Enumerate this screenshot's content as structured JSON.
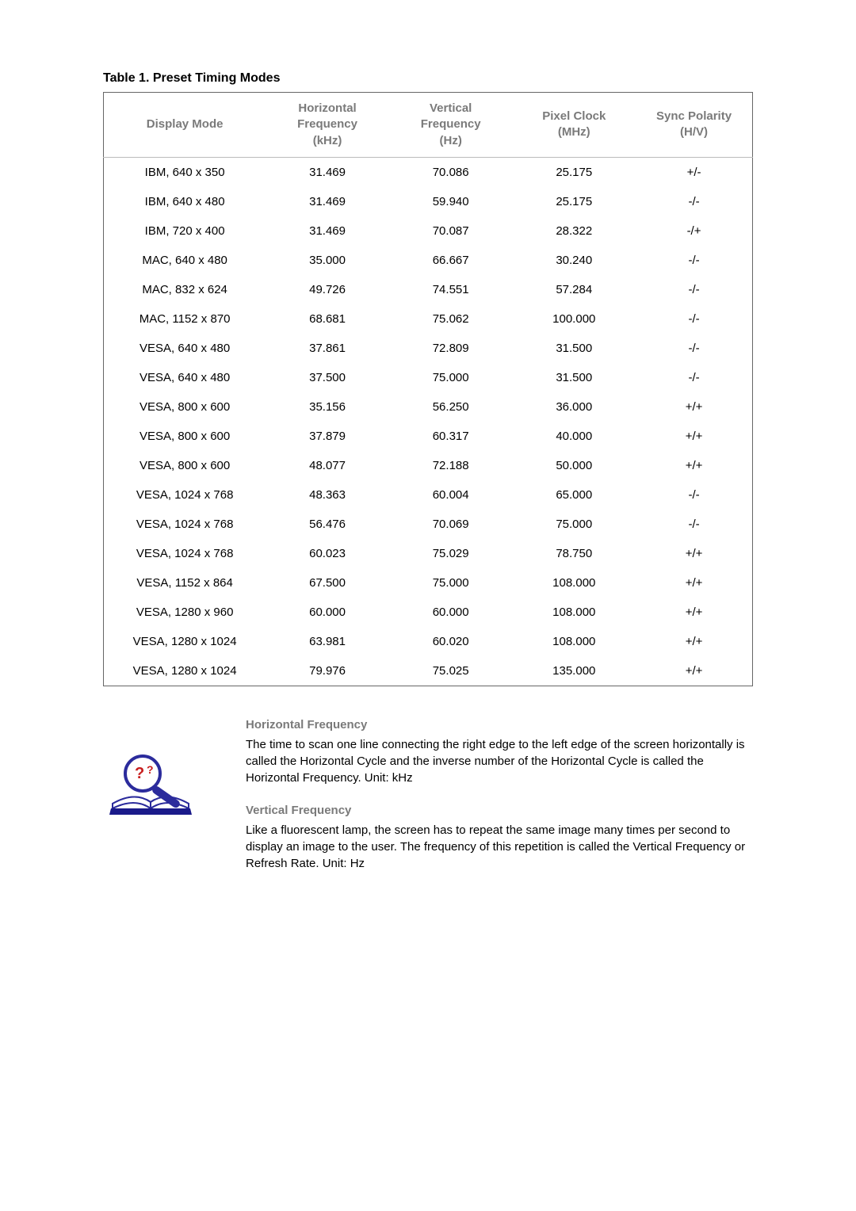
{
  "table": {
    "title": "Table 1. Preset Timing Modes",
    "columns": [
      "Display Mode",
      "Horizontal\nFrequency\n(kHz)",
      "Vertical\nFrequency\n(Hz)",
      "Pixel Clock\n(MHz)",
      "Sync Polarity\n(H/V)"
    ],
    "rows": [
      [
        "IBM, 640 x 350",
        "31.469",
        "70.086",
        "25.175",
        "+/-"
      ],
      [
        "IBM, 640 x 480",
        "31.469",
        "59.940",
        "25.175",
        "-/-"
      ],
      [
        "IBM, 720 x 400",
        "31.469",
        "70.087",
        "28.322",
        "-/+"
      ],
      [
        "MAC, 640 x 480",
        "35.000",
        "66.667",
        "30.240",
        "-/-"
      ],
      [
        "MAC, 832 x 624",
        "49.726",
        "74.551",
        "57.284",
        "-/-"
      ],
      [
        "MAC, 1152 x 870",
        "68.681",
        "75.062",
        "100.000",
        "-/-"
      ],
      [
        "VESA, 640 x 480",
        "37.861",
        "72.809",
        "31.500",
        "-/-"
      ],
      [
        "VESA, 640 x 480",
        "37.500",
        "75.000",
        "31.500",
        "-/-"
      ],
      [
        "VESA, 800 x 600",
        "35.156",
        "56.250",
        "36.000",
        "+/+"
      ],
      [
        "VESA, 800 x 600",
        "37.879",
        "60.317",
        "40.000",
        "+/+"
      ],
      [
        "VESA, 800 x 600",
        "48.077",
        "72.188",
        "50.000",
        "+/+"
      ],
      [
        "VESA, 1024 x 768",
        "48.363",
        "60.004",
        "65.000",
        "-/-"
      ],
      [
        "VESA, 1024 x 768",
        "56.476",
        "70.069",
        "75.000",
        "-/-"
      ],
      [
        "VESA, 1024 x 768",
        "60.023",
        "75.029",
        "78.750",
        "+/+"
      ],
      [
        "VESA, 1152 x 864",
        "67.500",
        "75.000",
        "108.000",
        "+/+"
      ],
      [
        "VESA, 1280 x 960",
        "60.000",
        "60.000",
        "108.000",
        "+/+"
      ],
      [
        "VESA, 1280 x 1024",
        "63.981",
        "60.020",
        "108.000",
        "+/+"
      ],
      [
        "VESA, 1280 x 1024",
        "79.976",
        "75.025",
        "135.000",
        "+/+"
      ]
    ],
    "header_color": "#7a7a7a",
    "border_color": "#666666",
    "header_divider_color": "#bbbbbb",
    "col_widths": [
      "25%",
      "19%",
      "19%",
      "19%",
      "18%"
    ]
  },
  "info": {
    "sections": [
      {
        "heading": "Horizontal Frequency",
        "body": "The time to scan one line connecting the right edge to the left edge of the screen horizontally is called the Horizontal Cycle and the inverse number of the Horizontal Cycle is called the Horizontal Frequency. Unit: kHz"
      },
      {
        "heading": "Vertical Frequency",
        "body": "Like a fluorescent lamp, the screen has to repeat the same image many times per second to display an image to the user. The frequency of this repetition is called the Vertical Frequency or Refresh Rate. Unit: Hz"
      }
    ]
  }
}
